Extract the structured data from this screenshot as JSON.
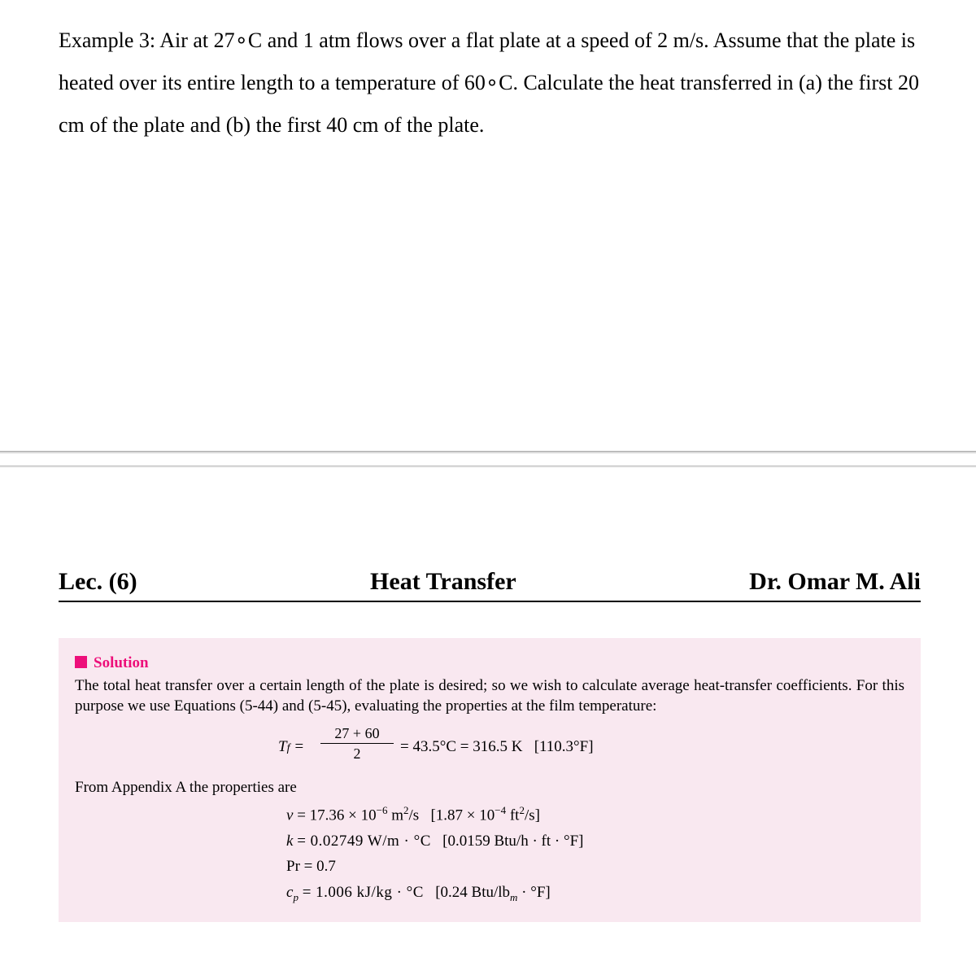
{
  "problem": {
    "text": "Example 3: Air at 27∘C and 1 atm flows over a flat plate at a speed of 2 m/s. Assume that the plate is heated over its entire length to a temperature of 60∘C. Calculate the heat transferred in (a) the first 20 cm of the plate and (b) the first 40 cm of the plate.",
    "font_size": 26,
    "color": "#000000"
  },
  "header": {
    "left": "Lec. (6)",
    "center": "Heat Transfer",
    "right": "Dr. Omar M. Ali",
    "font_size": 30,
    "underline_color": "#000000"
  },
  "solution": {
    "label": "Solution",
    "label_color": "#ed0f7a",
    "background_color": "#f9e8f0",
    "intro": "The total heat transfer over a certain length of the plate is desired; so we wish to calculate average heat-transfer coefficients. For this purpose we use Equations (5-44) and (5-45), evaluating the properties at the film temperature:",
    "film_temp": {
      "lhs": "T",
      "lhs_sub": "f",
      "numerator": "27 + 60",
      "denominator": "2",
      "result": "= 43.5°C = 316.5 K",
      "alt": "[110.3°F]"
    },
    "props_intro": "From Appendix A the properties are",
    "properties": {
      "nu": {
        "symbol": "ν",
        "value": "= 17.36 × 10",
        "exp": "−6",
        "unit": " m",
        "unit_exp": "2",
        "unit_tail": "/s",
        "alt": "[1.87 × 10",
        "alt_exp": "−4",
        "alt_unit": " ft",
        "alt_unit_exp": "2",
        "alt_tail": "/s]"
      },
      "k": {
        "symbol": "k",
        "value": "= 0.02749 W/m · °C",
        "alt": "[0.0159 Btu/h · ft · °F]"
      },
      "pr": {
        "symbol": "Pr",
        "value": "= 0.7"
      },
      "cp": {
        "symbol": "c",
        "symbol_sub": "p",
        "value": "= 1.006 kJ/kg · °C",
        "alt": "[0.24 Btu/lb",
        "alt_sub": "m",
        "alt_tail": " · °F]"
      }
    }
  },
  "page_rule": {
    "top1": 554,
    "top2": 572,
    "color_light": "#e8e8e8",
    "color_dark": "#b0b0b0"
  }
}
